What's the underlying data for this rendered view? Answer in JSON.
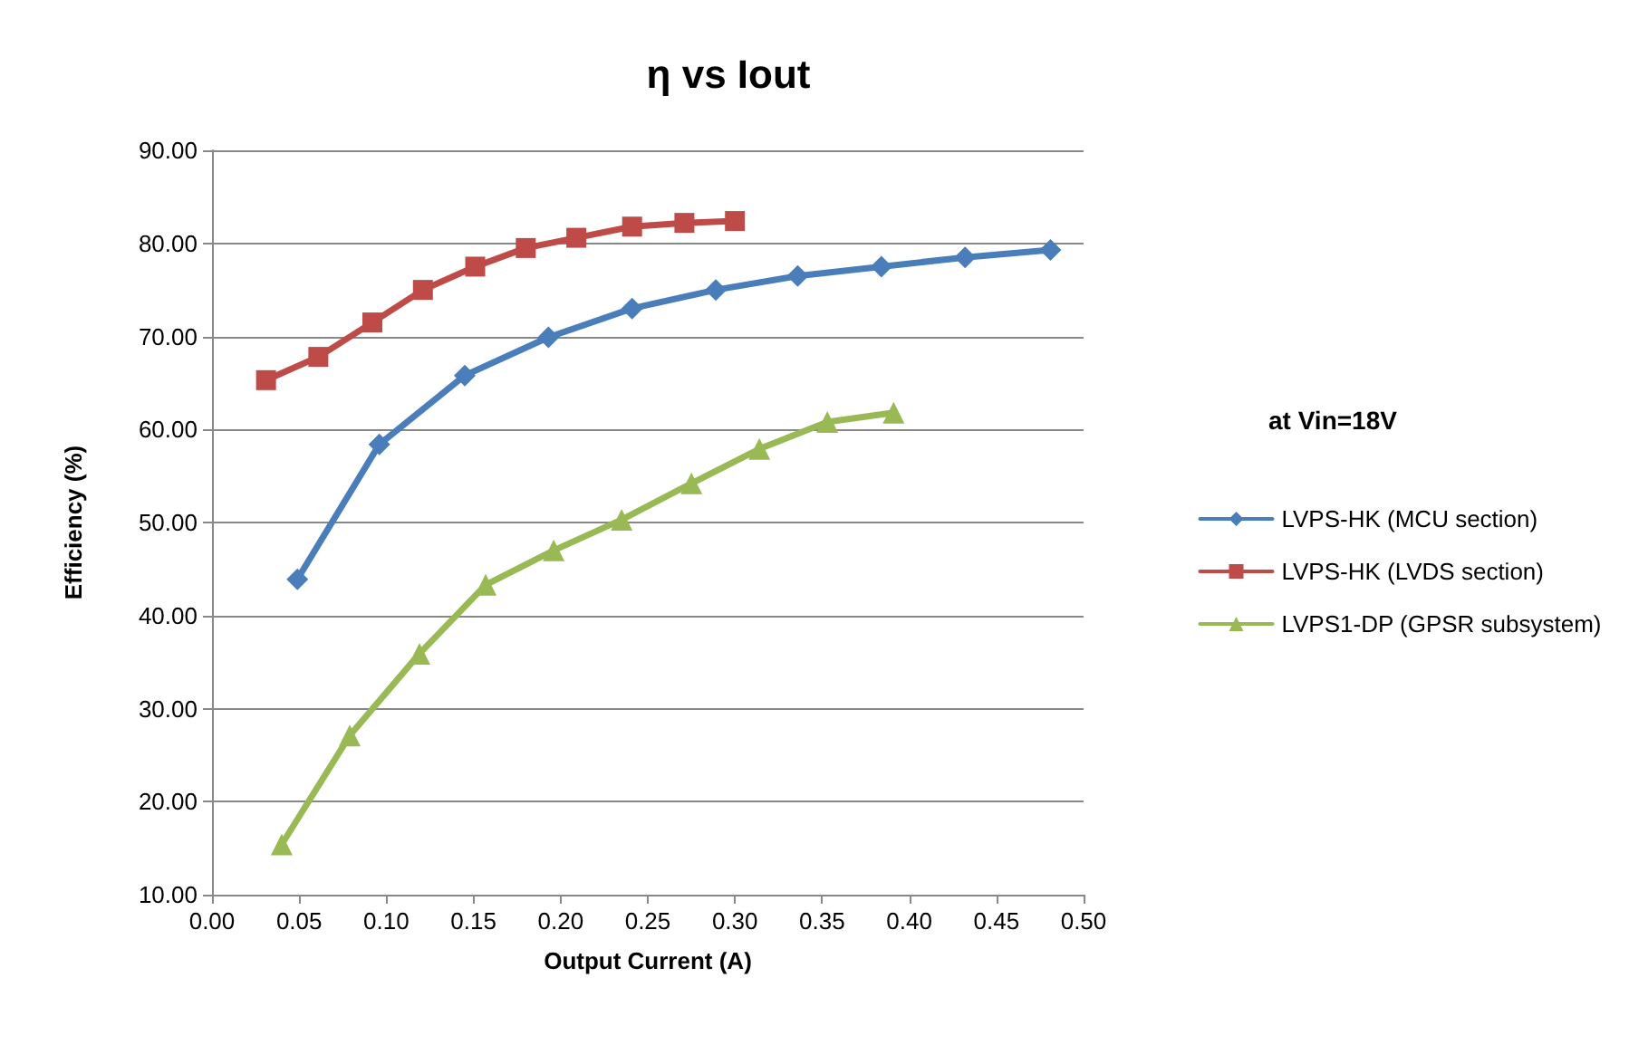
{
  "chart_data": {
    "type": "line",
    "title": "η vs Iout",
    "xlabel": "Output Current (A)",
    "ylabel": "Efficiency (%)",
    "annotations": [
      "at Vin=18V"
    ],
    "xlim": [
      0,
      0.5
    ],
    "xticks": [
      {
        "value": 0,
        "label": "0.00"
      },
      {
        "value": 0.05,
        "label": "0.05"
      },
      {
        "value": 0.1,
        "label": "0.10"
      },
      {
        "value": 0.15,
        "label": "0.15"
      },
      {
        "value": 0.2,
        "label": "0.20"
      },
      {
        "value": 0.25,
        "label": "0.25"
      },
      {
        "value": 0.3,
        "label": "0.30"
      },
      {
        "value": 0.35,
        "label": "0.35"
      },
      {
        "value": 0.4,
        "label": "0.40"
      },
      {
        "value": 0.45,
        "label": "0.45"
      },
      {
        "value": 0.5,
        "label": "0.50"
      }
    ],
    "ylim": [
      10,
      90
    ],
    "yticks": [
      {
        "value": 10,
        "label": "10.00"
      },
      {
        "value": 20,
        "label": "20.00"
      },
      {
        "value": 30,
        "label": "30.00"
      },
      {
        "value": 40,
        "label": "40.00"
      },
      {
        "value": 50,
        "label": "50.00"
      },
      {
        "value": 60,
        "label": "60.00"
      },
      {
        "value": 70,
        "label": "70.00"
      },
      {
        "value": 80,
        "label": "80.00"
      },
      {
        "value": 90,
        "label": "90.00"
      }
    ],
    "grid": "y",
    "legend": "right",
    "line_style": "solid",
    "series": [
      {
        "name": "LVPS-HK (MCU section)",
        "color": "#4a7ebb",
        "marker": "diamond",
        "x": [
          0.049,
          0.096,
          0.145,
          0.193,
          0.241,
          0.289,
          0.336,
          0.384,
          0.432,
          0.481
        ],
        "values": [
          43.9,
          58.4,
          65.8,
          69.9,
          73.0,
          75.0,
          76.5,
          77.5,
          78.5,
          79.3
        ]
      },
      {
        "name": "LVPS-HK (LVDS section)",
        "color": "#be4b48",
        "marker": "square",
        "x": [
          0.031,
          0.061,
          0.092,
          0.121,
          0.151,
          0.18,
          0.209,
          0.241,
          0.271,
          0.3
        ],
        "values": [
          65.3,
          67.8,
          71.5,
          75.0,
          77.5,
          79.5,
          80.6,
          81.8,
          82.2,
          82.4
        ]
      },
      {
        "name": "LVPS1-DP (GPSR subsystem)",
        "color": "#98b954",
        "marker": "triangle",
        "x": [
          0.04,
          0.079,
          0.119,
          0.157,
          0.196,
          0.235,
          0.275,
          0.314,
          0.353,
          0.391
        ],
        "values": [
          15.4,
          27.1,
          35.9,
          43.3,
          47.0,
          50.3,
          54.2,
          57.9,
          60.8,
          61.8
        ]
      }
    ]
  }
}
